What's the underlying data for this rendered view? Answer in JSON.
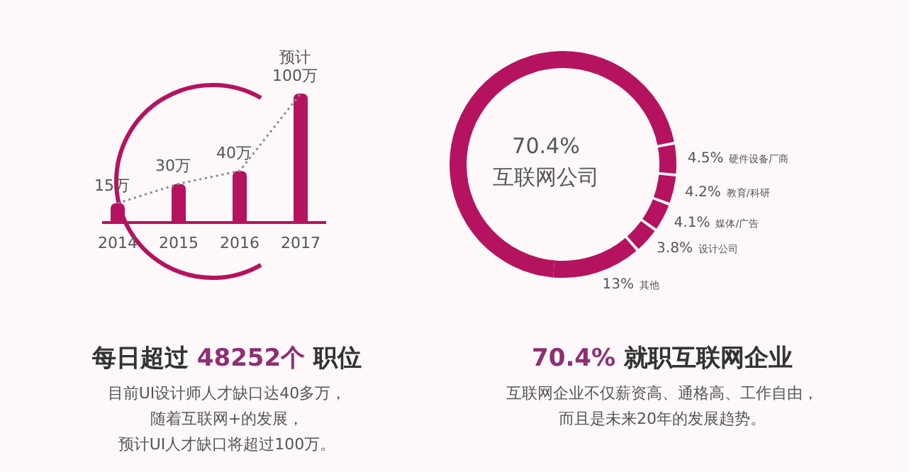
{
  "chart_data": [
    {
      "type": "bar",
      "title": "每日超过 48252个 职位",
      "annotations": [
        "目前UI设计师人才缺口达40多万，",
        "随着互联网+的发展，",
        "预计UI人才缺口将超过100万。"
      ],
      "categories": [
        "2014",
        "2015",
        "2016",
        "2017"
      ],
      "series": [
        {
          "type": "bar",
          "color": "#b5135f",
          "values": [
            15,
            30,
            40,
            100
          ],
          "value_labels": [
            "15万",
            "30万",
            "40万",
            "预计\n100万"
          ]
        },
        {
          "type": "line",
          "color": "#8a8a8a",
          "line_style": "dotted",
          "values": [
            15,
            30,
            40,
            100
          ]
        }
      ]
    },
    {
      "type": "donut",
      "title": "70.4% 就职互联网企业",
      "annotations": [
        "互联网企业不仅薪资高、通格高、工作自由，",
        "而且是未来20年的发展趋势。"
      ],
      "categories": [
        "互联网公司",
        "硬件设备厂商",
        "教育/科研",
        "媒体/广告",
        "设计公司",
        "其他"
      ],
      "values": [
        70.4,
        4.5,
        4.2,
        4.1,
        3.8,
        13
      ],
      "value_labels": [
        "70.4%",
        "4.5%",
        "4.2%",
        "4.1%",
        "3.8%",
        "13%"
      ],
      "colors": [
        "#b5135f",
        "#b5135f",
        "#b5135f",
        "#b5135f",
        "#b5135f",
        "#b5135f"
      ]
    }
  ]
}
